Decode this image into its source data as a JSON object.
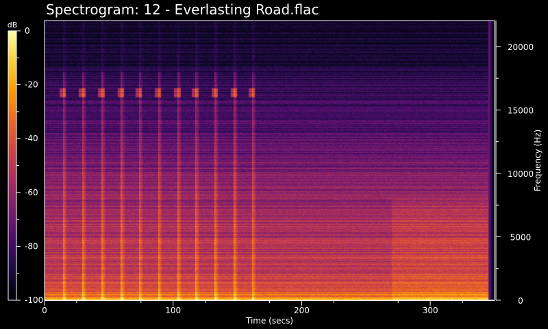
{
  "title": "Spectrogram: 12 - Everlasting Road.flac",
  "chart_data": {
    "type": "heatmap",
    "title": "Spectrogram: 12 - Everlasting Road.flac",
    "xlabel": "Time (secs)",
    "ylabel": "Frequency (Hz)",
    "colorbar_label": "dB",
    "x_ticks": [
      0,
      100,
      200,
      300
    ],
    "x_range": [
      0,
      350
    ],
    "y_ticks": [
      0,
      5000,
      10000,
      15000,
      20000
    ],
    "y_range": [
      0,
      22050
    ],
    "colorbar_ticks": [
      0,
      -20,
      -40,
      -60,
      -80,
      -100
    ],
    "colorbar_range": [
      -100,
      0
    ],
    "colormap": [
      "#000004",
      "#1b0c41",
      "#4a0c6b",
      "#781c6d",
      "#a52c60",
      "#cf4446",
      "#ed6925",
      "#fb9b06",
      "#f7d13d",
      "#fcffa4"
    ],
    "background_level_db": -95,
    "note_onsets_secs": [
      14,
      29,
      44,
      59,
      73,
      88,
      103,
      117,
      132,
      147,
      161
    ],
    "note_partial_hz": 16400,
    "loud_section_secs": [
      270,
      345
    ],
    "track_end_secs": 345
  }
}
